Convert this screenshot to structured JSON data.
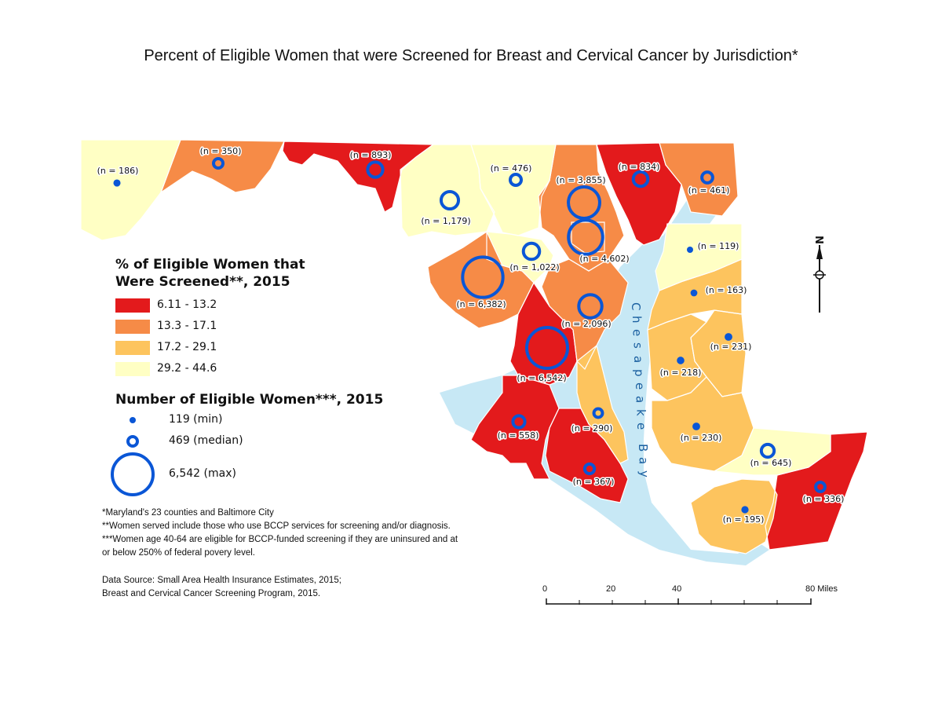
{
  "title": "Percent of Eligible Women that were Screened for Breast and Cervical Cancer by Jurisdiction*",
  "legend_pct": {
    "title_line1": "% of Eligible Women that",
    "title_line2": "Were Screened**, 2015",
    "classes": [
      {
        "label": "6.11 - 13.2",
        "color": "#e31a1c"
      },
      {
        "label": "13.3 - 17.1",
        "color": "#f68b47"
      },
      {
        "label": "17.2 - 29.1",
        "color": "#fdc45e"
      },
      {
        "label": "29.2 - 44.6",
        "color": "#ffffc4"
      }
    ]
  },
  "legend_n": {
    "title": "Number of Eligible Women***, 2015",
    "items": [
      {
        "label": "119 (min)",
        "value": 119
      },
      {
        "label": "469 (median)",
        "value": 469
      },
      {
        "label": "6,542 (max)",
        "value": 6542
      }
    ],
    "circle_color": "#0a56d6"
  },
  "notes": [
    "*Maryland's 23 counties and Baltimore City",
    "**Women served include those who use BCCP services for screening and/or diagnosis.",
    "***Women age 40-64 are eligible for BCCP-funded screening if they are uninsured and at",
    "or below 250% of federal povery level."
  ],
  "source": [
    "Data Source: Small Area Health Insurance Estimates, 2015;",
    "Breast and Cervical Cancer Screening Program, 2015."
  ],
  "scale_bar": {
    "ticks": [
      "0",
      "20",
      "40",
      "80 Miles"
    ]
  },
  "bay_label": "Chesapeake Bay",
  "north_label": "N",
  "jurisdictions": [
    {
      "label": "(n = 186)",
      "n": 186,
      "class": 3
    },
    {
      "label": "(n = 350)",
      "n": 350,
      "class": 1
    },
    {
      "label": "(n = 893)",
      "n": 893,
      "class": 0
    },
    {
      "label": "(n = 1,179)",
      "n": 1179,
      "class": 3
    },
    {
      "label": "(n = 476)",
      "n": 476,
      "class": 3
    },
    {
      "label": "(n = 3,855)",
      "n": 3855,
      "class": 1
    },
    {
      "label": "(n = 834)",
      "n": 834,
      "class": 0
    },
    {
      "label": "(n = 461)",
      "n": 461,
      "class": 1
    },
    {
      "label": "(n = 4,602)",
      "n": 4602,
      "class": 1
    },
    {
      "label": "(n = 1,022)",
      "n": 1022,
      "class": 3
    },
    {
      "label": "(n = 6,382)",
      "n": 6382,
      "class": 1
    },
    {
      "label": "(n = 2,096)",
      "n": 2096,
      "class": 1
    },
    {
      "label": "(n = 6,542)",
      "n": 6542,
      "class": 0
    },
    {
      "label": "(n = 558)",
      "n": 558,
      "class": 0
    },
    {
      "label": "(n = 290)",
      "n": 290,
      "class": 2
    },
    {
      "label": "(n = 367)",
      "n": 367,
      "class": 0
    },
    {
      "label": "(n = 119)",
      "n": 119,
      "class": 3
    },
    {
      "label": "(n = 163)",
      "n": 163,
      "class": 2
    },
    {
      "label": "(n = 231)",
      "n": 231,
      "class": 2
    },
    {
      "label": "(n = 218)",
      "n": 218,
      "class": 2
    },
    {
      "label": "(n = 230)",
      "n": 230,
      "class": 2
    },
    {
      "label": "(n = 645)",
      "n": 645,
      "class": 3
    },
    {
      "label": "(n = 336)",
      "n": 336,
      "class": 0
    },
    {
      "label": "(n = 195)",
      "n": 195,
      "class": 2
    }
  ]
}
